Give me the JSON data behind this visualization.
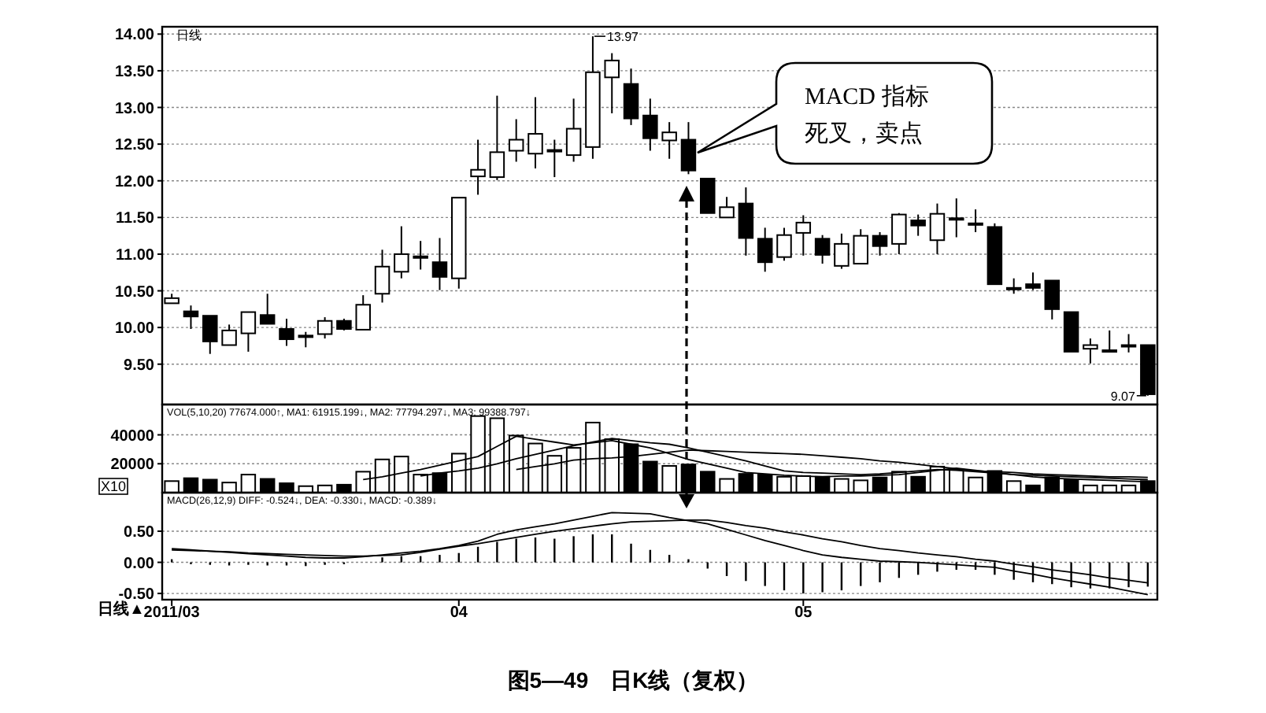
{
  "chart_data": [
    {
      "type": "candlestick",
      "categories": [
        null,
        null,
        null,
        null,
        null,
        null,
        null,
        null,
        null,
        null,
        null,
        null,
        null,
        null,
        null,
        null,
        null,
        null,
        null,
        null,
        null,
        null,
        null,
        null,
        null,
        null,
        null,
        null,
        null,
        null,
        null,
        null,
        null,
        null,
        null,
        null,
        null,
        null,
        null,
        null,
        null,
        null,
        null,
        null,
        null,
        null,
        null,
        null,
        null,
        null,
        null,
        null
      ],
      "ohlc": [
        [
          10.33,
          10.46,
          10.33,
          10.4
        ],
        [
          10.22,
          10.3,
          9.98,
          10.15
        ],
        [
          10.16,
          10.16,
          9.64,
          9.81
        ],
        [
          9.76,
          10.04,
          9.76,
          9.96
        ],
        [
          9.92,
          10.21,
          9.67,
          10.21
        ],
        [
          10.17,
          10.46,
          10.05,
          10.05
        ],
        [
          9.98,
          10.12,
          9.75,
          9.84
        ],
        [
          9.89,
          9.94,
          9.73,
          9.89
        ],
        [
          9.91,
          10.14,
          9.85,
          10.09
        ],
        [
          10.09,
          10.12,
          9.96,
          9.98
        ],
        [
          9.97,
          10.44,
          9.97,
          10.31
        ],
        [
          10.46,
          11.06,
          10.34,
          10.83
        ],
        [
          10.76,
          11.38,
          10.67,
          11.0
        ],
        [
          10.97,
          11.18,
          10.79,
          10.97
        ],
        [
          10.89,
          11.22,
          10.51,
          10.69
        ],
        [
          10.67,
          11.77,
          10.53,
          11.77
        ],
        [
          12.06,
          12.56,
          11.81,
          12.15
        ],
        [
          12.05,
          13.16,
          12.01,
          12.39
        ],
        [
          12.41,
          12.84,
          12.26,
          12.56
        ],
        [
          12.37,
          13.14,
          12.17,
          12.64
        ],
        [
          12.42,
          12.56,
          12.05,
          12.42
        ],
        [
          12.35,
          13.12,
          12.26,
          12.71
        ],
        [
          12.46,
          13.97,
          12.3,
          13.48
        ],
        [
          13.41,
          13.74,
          12.92,
          13.64
        ],
        [
          13.32,
          13.53,
          12.76,
          12.85
        ],
        [
          12.89,
          13.12,
          12.41,
          12.58
        ],
        [
          12.55,
          12.8,
          12.3,
          12.66
        ],
        [
          12.56,
          12.8,
          12.09,
          12.14
        ],
        [
          12.03,
          12.03,
          11.56,
          11.56
        ],
        [
          11.5,
          11.78,
          11.5,
          11.64
        ],
        [
          11.69,
          11.91,
          10.98,
          11.22
        ],
        [
          11.21,
          11.36,
          10.76,
          10.89
        ],
        [
          10.96,
          11.36,
          10.91,
          11.26
        ],
        [
          11.29,
          11.53,
          10.98,
          11.43
        ],
        [
          11.21,
          11.26,
          10.87,
          10.99
        ],
        [
          10.84,
          11.28,
          10.8,
          11.14
        ],
        [
          10.87,
          11.34,
          10.87,
          11.25
        ],
        [
          11.25,
          11.3,
          10.98,
          11.11
        ],
        [
          11.14,
          11.56,
          11.0,
          11.54
        ],
        [
          11.46,
          11.54,
          11.25,
          11.39
        ],
        [
          11.19,
          11.69,
          11.0,
          11.55
        ],
        [
          11.49,
          11.76,
          11.23,
          11.49
        ],
        [
          11.42,
          11.61,
          11.3,
          11.42
        ],
        [
          11.37,
          11.42,
          10.59,
          10.59
        ],
        [
          10.54,
          10.67,
          10.46,
          10.54
        ],
        [
          10.59,
          10.75,
          10.51,
          10.54
        ],
        [
          10.64,
          10.64,
          10.11,
          10.25
        ],
        [
          10.21,
          10.21,
          9.67,
          9.67
        ],
        [
          9.71,
          9.85,
          9.51,
          9.76
        ],
        [
          9.69,
          9.96,
          9.68,
          9.69
        ],
        [
          9.76,
          9.91,
          9.66,
          9.76
        ],
        [
          9.76,
          9.76,
          9.07,
          9.09
        ]
      ],
      "ylim": [
        8.95,
        14.1
      ],
      "yticks": [
        {
          "value": 9.5,
          "label": "9.50"
        },
        {
          "value": 10,
          "label": "10.00"
        },
        {
          "value": 10.5,
          "label": "10.50"
        },
        {
          "value": 11,
          "label": "11.00"
        },
        {
          "value": 11.5,
          "label": "11.50"
        },
        {
          "value": 12,
          "label": "12.00"
        },
        {
          "value": 12.5,
          "label": "12.50"
        },
        {
          "value": 13,
          "label": "13.00"
        },
        {
          "value": 13.5,
          "label": "13.50"
        },
        {
          "value": 14,
          "label": "14.00"
        }
      ],
      "grid": "y",
      "tick_labels": "y",
      "annotations": [
        "日线",
        "13.97",
        "9.07",
        "MACD 指标",
        "死叉，卖点"
      ]
    },
    {
      "type": "bar",
      "categories": [
        null,
        null,
        null,
        null,
        null,
        null,
        null,
        null,
        null,
        null,
        null,
        null,
        null,
        null,
        null,
        null,
        null,
        null,
        null,
        null,
        null,
        null,
        null,
        null,
        null,
        null,
        null,
        null,
        null,
        null,
        null,
        null,
        null,
        null,
        null,
        null,
        null,
        null,
        null,
        null,
        null,
        null,
        null,
        null,
        null,
        null,
        null,
        null,
        null,
        null,
        null,
        null
      ],
      "series": [
        {
          "type": "bar",
          "values": [
            8000,
            10000,
            9000,
            7000,
            12500,
            9500,
            6500,
            4500,
            5000,
            5500,
            14500,
            23000,
            25000,
            12500,
            13500,
            27000,
            53000,
            51500,
            39500,
            34000,
            25500,
            31000,
            48500,
            37000,
            33500,
            21500,
            18500,
            19500,
            14500,
            9500,
            13000,
            12500,
            11000,
            11500,
            11000,
            9500,
            8500,
            10500,
            14500,
            11000,
            18000,
            16000,
            10500,
            15000,
            8000,
            5000,
            10500,
            9000,
            5000,
            5000,
            5000,
            8000
          ],
          "colors": [
            "#ffffff",
            "#000000",
            "#000000",
            "#ffffff",
            "#ffffff",
            "#000000",
            "#000000",
            "#ffffff",
            "#ffffff",
            "#000000",
            "#ffffff",
            "#ffffff",
            "#ffffff",
            "#ffffff",
            "#000000",
            "#ffffff",
            "#ffffff",
            "#ffffff",
            "#ffffff",
            "#ffffff",
            "#ffffff",
            "#ffffff",
            "#ffffff",
            "#ffffff",
            "#000000",
            "#000000",
            "#ffffff",
            "#000000",
            "#000000",
            "#ffffff",
            "#000000",
            "#000000",
            "#ffffff",
            "#ffffff",
            "#000000",
            "#ffffff",
            "#ffffff",
            "#000000",
            "#ffffff",
            "#000000",
            "#ffffff",
            "#ffffff",
            "#ffffff",
            "#000000",
            "#ffffff",
            "#000000",
            "#000000",
            "#000000",
            "#ffffff",
            "#ffffff",
            "#ffffff",
            "#000000"
          ]
        },
        {
          "type": "line",
          "color": "#000000",
          "values": [
            null,
            null,
            null,
            null,
            null,
            null,
            null,
            null,
            null,
            null,
            9000,
            11000,
            13500,
            16000,
            19000,
            22000,
            25000,
            32000,
            39000,
            37000,
            35000,
            33000,
            34500,
            36000,
            33500,
            31000,
            27000,
            23000,
            20000,
            17000,
            14000,
            13000,
            12000,
            11500,
            11000,
            11500,
            11500,
            12000,
            12500,
            14000,
            15500,
            17000,
            15500,
            14000,
            12500,
            11000,
            10000,
            9500,
            9000,
            8500,
            8000,
            7500
          ]
        },
        {
          "type": "line",
          "color": "#000000",
          "values": [
            null,
            null,
            null,
            null,
            null,
            null,
            null,
            null,
            null,
            null,
            null,
            null,
            null,
            11500,
            13500,
            15000,
            17000,
            20000,
            23500,
            26500,
            29500,
            32500,
            35000,
            37500,
            36000,
            34500,
            33500,
            31000,
            28000,
            25000,
            22000,
            18500,
            15000,
            14000,
            13500,
            13000,
            12500,
            13000,
            14000,
            15000,
            16000,
            15500,
            14500,
            13500,
            12500,
            12000,
            11500,
            11000,
            10500,
            10000,
            9500,
            9000
          ]
        },
        {
          "type": "line",
          "color": "#000000",
          "values": [
            null,
            null,
            null,
            null,
            null,
            null,
            null,
            null,
            null,
            null,
            null,
            null,
            null,
            null,
            null,
            null,
            null,
            null,
            16000,
            18000,
            20000,
            22500,
            23500,
            24000,
            25000,
            26500,
            28000,
            29500,
            29000,
            28500,
            28000,
            27500,
            27000,
            26500,
            25500,
            24500,
            23500,
            22000,
            21000,
            19500,
            18000,
            16500,
            15000,
            14500,
            14000,
            13000,
            12500,
            12000,
            11500,
            11000,
            11000,
            10500
          ]
        }
      ],
      "ylim": [
        0,
        61000
      ],
      "yticks": [
        20000,
        40000
      ],
      "grid": "y",
      "tick_labels": "y",
      "annotations": [
        "VOL(5,10,20) 77674.000↑, MA1: 61915.199↓, MA2: 77794.297↓, MA3: 99388.797↓",
        "X10"
      ]
    },
    {
      "type": "line",
      "categories": [
        "2011/03",
        null,
        null,
        null,
        null,
        null,
        null,
        null,
        null,
        null,
        null,
        null,
        null,
        null,
        null,
        "04",
        null,
        null,
        null,
        null,
        null,
        null,
        null,
        null,
        null,
        null,
        null,
        null,
        null,
        null,
        null,
        null,
        null,
        "05",
        null,
        null,
        null,
        null,
        null,
        null,
        null,
        null,
        null,
        null,
        null,
        null,
        null,
        null,
        null,
        null,
        null,
        null
      ],
      "series": [
        {
          "type": "bar",
          "color": "#000000",
          "values": [
            0.05,
            -0.03,
            -0.04,
            -0.05,
            -0.04,
            -0.05,
            -0.05,
            -0.06,
            -0.04,
            -0.03,
            null,
            0.08,
            0.1,
            0.1,
            0.12,
            0.15,
            0.25,
            0.33,
            0.38,
            0.4,
            0.38,
            0.42,
            0.45,
            0.45,
            0.3,
            0.2,
            0.12,
            0.05,
            -0.1,
            -0.22,
            -0.3,
            -0.38,
            -0.45,
            -0.5,
            -0.48,
            -0.45,
            -0.38,
            -0.32,
            -0.25,
            -0.2,
            -0.15,
            -0.12,
            -0.12,
            -0.2,
            -0.28,
            -0.32,
            -0.35,
            -0.4,
            -0.42,
            -0.42,
            -0.4,
            -0.39
          ]
        },
        {
          "type": "line",
          "color": "#000000",
          "values": [
            0.22,
            0.2,
            0.18,
            0.16,
            0.14,
            0.12,
            0.1,
            0.08,
            0.07,
            0.07,
            0.09,
            0.12,
            0.15,
            0.18,
            0.22,
            0.27,
            0.34,
            0.45,
            0.52,
            0.57,
            0.62,
            0.68,
            0.74,
            0.8,
            0.79,
            0.78,
            0.72,
            0.67,
            0.62,
            0.53,
            0.44,
            0.35,
            0.27,
            0.19,
            0.12,
            0.08,
            0.05,
            0.02,
            0.01,
            0,
            -0.02,
            -0.04,
            -0.06,
            -0.08,
            -0.14,
            -0.19,
            -0.25,
            -0.3,
            -0.35,
            -0.4,
            -0.46,
            -0.52
          ]
        },
        {
          "type": "line",
          "color": "#000000",
          "values": [
            0.2,
            0.19,
            0.18,
            0.17,
            0.15,
            0.14,
            0.13,
            0.12,
            0.11,
            0.1,
            0.1,
            0.11,
            0.12,
            0.16,
            0.21,
            0.26,
            0.3,
            0.35,
            0.4,
            0.45,
            0.5,
            0.54,
            0.58,
            0.62,
            0.65,
            0.66,
            0.67,
            0.68,
            0.68,
            0.64,
            0.59,
            0.55,
            0.49,
            0.44,
            0.38,
            0.33,
            0.27,
            0.22,
            0.19,
            0.15,
            0.12,
            0.09,
            0.05,
            0.02,
            -0.03,
            -0.07,
            -0.12,
            -0.16,
            -0.2,
            -0.25,
            -0.29,
            -0.33
          ]
        }
      ],
      "ylim": [
        -0.6,
        1.12
      ],
      "yticks": [
        {
          "value": 0.5,
          "label": "0.50"
        },
        {
          "value": 0,
          "label": "0.00"
        },
        {
          "value": -0.5,
          "label": "-0.50"
        }
      ],
      "grid": "y",
      "annotations": [
        "MACD(26,12,9) DIFF: -0.524↓, DEA: -0.330↓, MACD: -0.389↓",
        "日线▲",
        "图5—49　日K线（复权）"
      ]
    }
  ]
}
